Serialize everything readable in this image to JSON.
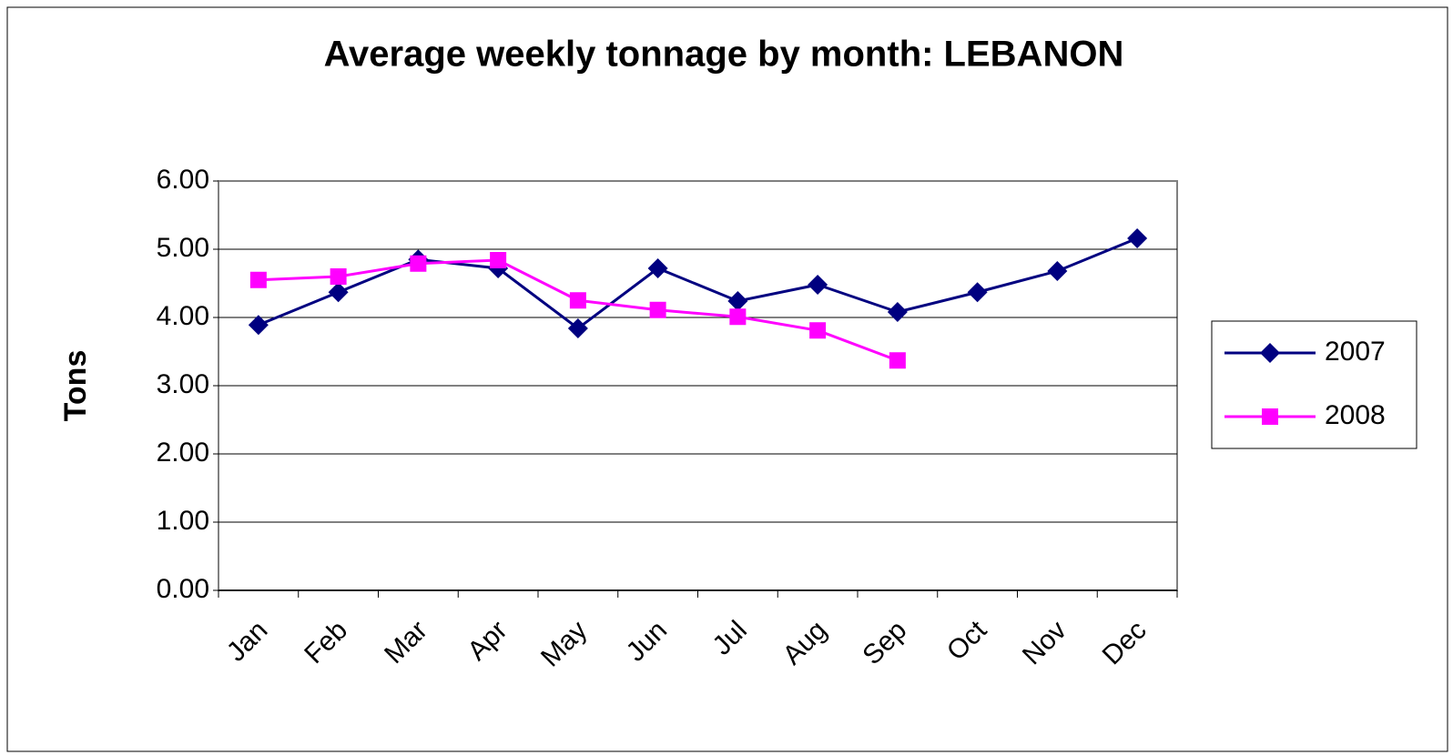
{
  "chart_data": {
    "type": "line",
    "title": "Average weekly tonnage by month: LEBANON",
    "y_label": "Tons",
    "categories": [
      "Jan",
      "Feb",
      "Mar",
      "Apr",
      "May",
      "Jun",
      "Jul",
      "Aug",
      "Sep",
      "Oct",
      "Nov",
      "Dec"
    ],
    "series": [
      {
        "name": "2007",
        "color": "#000080",
        "marker": "diamond",
        "values": [
          3.89,
          4.37,
          4.85,
          4.72,
          3.84,
          4.72,
          4.24,
          4.48,
          4.08,
          4.37,
          4.68,
          5.16
        ]
      },
      {
        "name": "2008",
        "color": "#ff00ff",
        "marker": "square",
        "values": [
          4.55,
          4.6,
          4.79,
          4.84,
          4.25,
          4.11,
          4.01,
          3.81,
          3.37,
          null,
          null,
          null
        ]
      }
    ],
    "ylim": [
      0,
      6
    ],
    "yticks": [
      {
        "value": 0,
        "label": "0.00"
      },
      {
        "value": 1,
        "label": "1.00"
      },
      {
        "value": 2,
        "label": "2.00"
      },
      {
        "value": 3,
        "label": "3.00"
      },
      {
        "value": 4,
        "label": "4.00"
      },
      {
        "value": 5,
        "label": "5.00"
      },
      {
        "value": 6,
        "label": "6.00"
      }
    ],
    "grid": true,
    "legend": "right"
  }
}
